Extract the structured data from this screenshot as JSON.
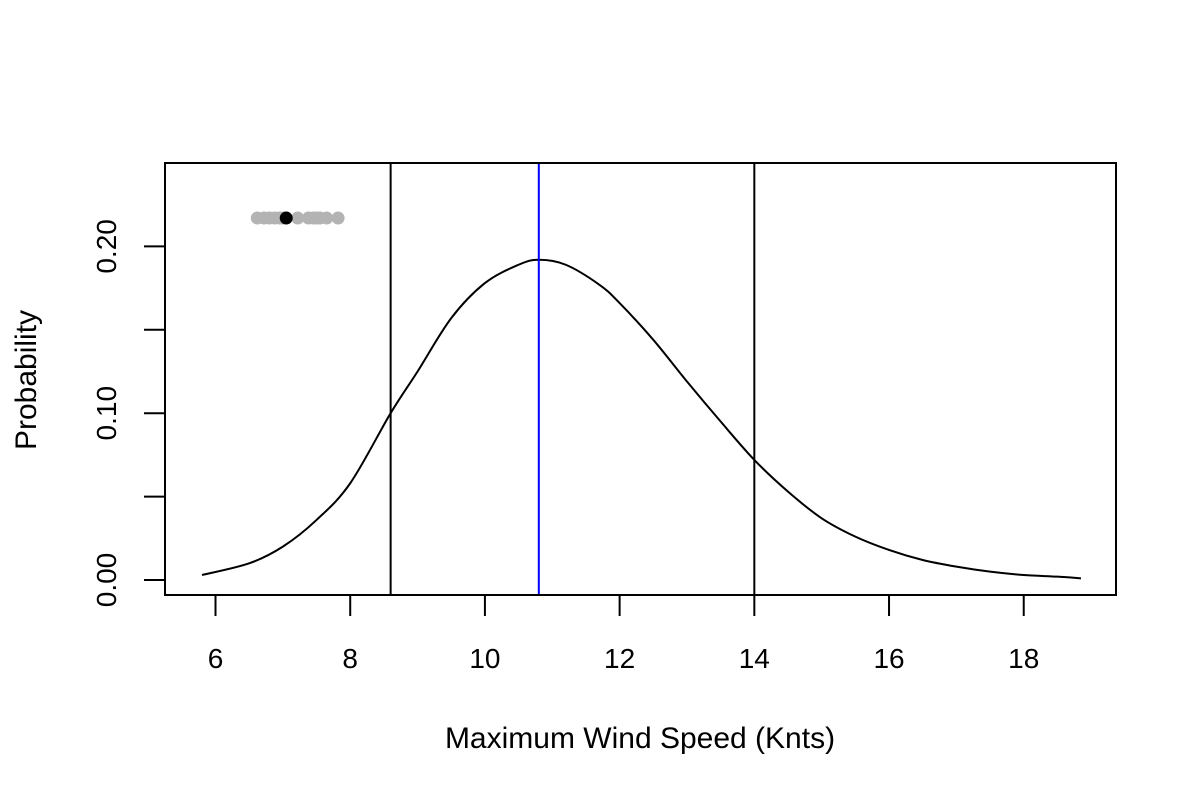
{
  "chart_data": {
    "type": "line",
    "title": "",
    "xlabel": "Maximum Wind Speed (Knts)",
    "ylabel": "Probability",
    "xlim": [
      5.25,
      19.37
    ],
    "ylim": [
      -0.009,
      0.25
    ],
    "x_ticks": [
      {
        "value": 6,
        "label": "6"
      },
      {
        "value": 8,
        "label": "8"
      },
      {
        "value": 10,
        "label": "10"
      },
      {
        "value": 12,
        "label": "12"
      },
      {
        "value": 14,
        "label": "14"
      },
      {
        "value": 16,
        "label": "16"
      },
      {
        "value": 18,
        "label": "18"
      }
    ],
    "y_ticks": [
      {
        "value": 0.0,
        "label": "0.00"
      },
      {
        "value": 0.05,
        "label": ""
      },
      {
        "value": 0.1,
        "label": "0.10"
      },
      {
        "value": 0.15,
        "label": ""
      },
      {
        "value": 0.2,
        "label": "0.20"
      }
    ],
    "grid": false,
    "series": [
      {
        "color": "#000000",
        "x": [
          5.8,
          6.5,
          7.0,
          7.5,
          8.0,
          8.6,
          9.0,
          9.5,
          10.0,
          10.5,
          10.8,
          11.2,
          11.7,
          12.0,
          12.5,
          13.0,
          13.5,
          14.0,
          14.5,
          15.0,
          15.5,
          16.0,
          16.5,
          17.0,
          17.5,
          18.0,
          18.5,
          18.85
        ],
        "y": [
          0.003,
          0.01,
          0.02,
          0.036,
          0.058,
          0.1,
          0.125,
          0.157,
          0.178,
          0.189,
          0.192,
          0.189,
          0.177,
          0.166,
          0.144,
          0.119,
          0.095,
          0.072,
          0.053,
          0.037,
          0.026,
          0.018,
          0.012,
          0.008,
          0.005,
          0.003,
          0.002,
          0.001
        ]
      }
    ],
    "vlines": [
      {
        "x": 8.6,
        "color": "#000000"
      },
      {
        "x": 10.8,
        "color": "#0000ff"
      },
      {
        "x": 14.0,
        "color": "#000000"
      }
    ],
    "points": {
      "y": 0.217,
      "gray_color": "#b3b3b3",
      "highlight_color": "#000000",
      "gray_x": [
        6.62,
        6.72,
        6.8,
        6.88,
        6.95,
        7.0,
        7.22,
        7.38,
        7.45,
        7.5,
        7.55,
        7.65,
        7.82
      ],
      "highlight_x": [
        7.05
      ]
    }
  }
}
